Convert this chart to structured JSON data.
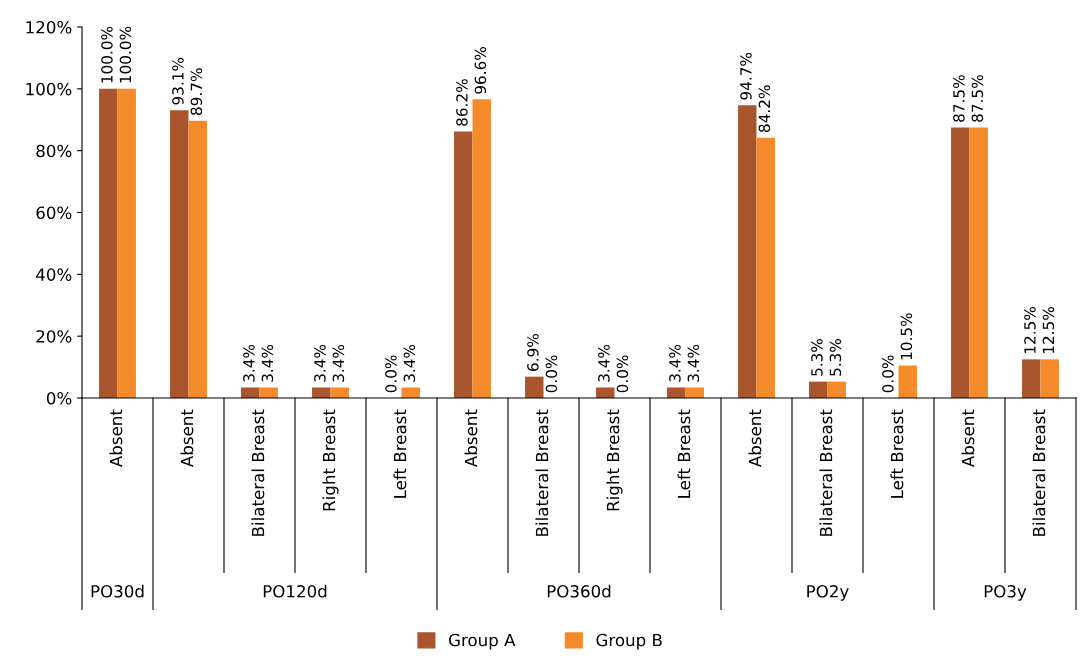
{
  "chart_data": {
    "type": "bar",
    "categories": [
      "Absent",
      "Absent",
      "Bilateral Breast",
      "Right Breast",
      "Left Breast",
      "Absent",
      "Bilateral Breast",
      "Right Breast",
      "Left Breast",
      "Absent",
      "Bilateral Breast",
      "Left Breast",
      "Absent",
      "Bilateral Breast"
    ],
    "series": [
      {
        "name": "Group A",
        "color": "#a9562f",
        "values": [
          100.0,
          93.1,
          3.4,
          3.4,
          0.0,
          86.2,
          6.9,
          3.4,
          3.4,
          94.7,
          5.3,
          0.0,
          87.5,
          12.5
        ],
        "value_labels": [
          "100.0%",
          "93.1%",
          "3.4%",
          "3.4%",
          "0.0%",
          "86.2%",
          "6.9%",
          "3.4%",
          "3.4%",
          "94.7%",
          "5.3%",
          "0.0%",
          "87.5%",
          "12.5%"
        ]
      },
      {
        "name": "Group B",
        "color": "#f58a2b",
        "values": [
          100.0,
          89.7,
          3.4,
          3.4,
          3.4,
          96.6,
          0.0,
          0.0,
          3.4,
          84.2,
          5.3,
          10.5,
          87.5,
          12.5
        ],
        "value_labels": [
          "100.0%",
          "89.7%",
          "3.4%",
          "3.4%",
          "3.4%",
          "96.6%",
          "0.0%",
          "0.0%",
          "3.4%",
          "84.2%",
          "5.3%",
          "10.5%",
          "87.5%",
          "12.5%"
        ]
      }
    ],
    "ylim": [
      0,
      120
    ],
    "yticks": [
      {
        "value": 0,
        "label": "0%"
      },
      {
        "value": 20,
        "label": "20%"
      },
      {
        "value": 40,
        "label": "40%"
      },
      {
        "value": 60,
        "label": "60%"
      },
      {
        "value": 80,
        "label": "80%"
      },
      {
        "value": 100,
        "label": "100%"
      },
      {
        "value": 120,
        "label": "120%"
      }
    ],
    "annotations": [
      "PO30d",
      "PO120d",
      "PO360d",
      "PO2y",
      "PO3y"
    ],
    "grid": false,
    "legend": "bottom"
  }
}
